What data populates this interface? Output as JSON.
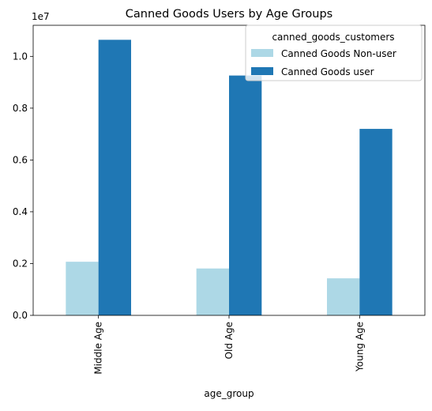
{
  "chart_data": {
    "type": "bar",
    "title": "Canned Goods Users by Age Groups",
    "xlabel": "age_group",
    "ylabel": "",
    "categories": [
      "Middle Age",
      "Old Age",
      "Young Age"
    ],
    "series": [
      {
        "name": "Canned Goods Non-user",
        "color": "#add8e6",
        "values": [
          2070000,
          1810000,
          1430000
        ]
      },
      {
        "name": "Canned Goods user",
        "color": "#1f77b4",
        "values": [
          10640000,
          9260000,
          7200000
        ]
      }
    ],
    "ylim": [
      0,
      11200000
    ],
    "yticks": [
      0,
      2000000,
      4000000,
      6000000,
      8000000,
      10000000
    ],
    "ytick_labels": [
      "0.0",
      "0.2",
      "0.4",
      "0.6",
      "0.8",
      "1.0"
    ],
    "y_offset_label": "1e7",
    "legend": {
      "title": "canned_goods_customers",
      "location": "top-right"
    },
    "grid": false
  }
}
